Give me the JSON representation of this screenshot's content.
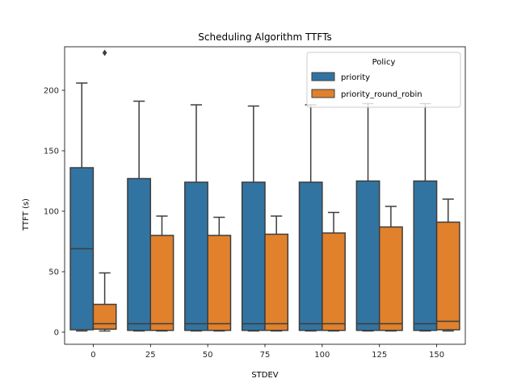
{
  "chart_data": {
    "type": "box",
    "title": "Scheduling Algorithm TTFTs",
    "xlabel": "STDEV",
    "ylabel": "TTFT (s)",
    "categories": [
      "0",
      "25",
      "50",
      "75",
      "100",
      "125",
      "150"
    ],
    "ylim": [
      -10,
      236
    ],
    "yticks": [
      0,
      50,
      100,
      150,
      200
    ],
    "grid": false,
    "legend": {
      "title": "Policy",
      "placement": "top-right"
    },
    "series": [
      {
        "name": "priority",
        "color": "#3274a1",
        "boxes": [
          {
            "whisker_low": 1,
            "q1": 2,
            "median": 69,
            "q3": 136,
            "whisker_high": 206,
            "outliers": []
          },
          {
            "whisker_low": 1,
            "q1": 1.5,
            "median": 7,
            "q3": 127,
            "whisker_high": 191,
            "outliers": []
          },
          {
            "whisker_low": 1,
            "q1": 1.5,
            "median": 7,
            "q3": 124,
            "whisker_high": 188,
            "outliers": []
          },
          {
            "whisker_low": 1,
            "q1": 1.5,
            "median": 7,
            "q3": 124,
            "whisker_high": 187,
            "outliers": []
          },
          {
            "whisker_low": 1,
            "q1": 1.5,
            "median": 7,
            "q3": 124,
            "whisker_high": 188,
            "outliers": []
          },
          {
            "whisker_low": 1,
            "q1": 1.5,
            "median": 7,
            "q3": 125,
            "whisker_high": 189,
            "outliers": []
          },
          {
            "whisker_low": 1,
            "q1": 1.5,
            "median": 7,
            "q3": 125,
            "whisker_high": 189,
            "outliers": []
          }
        ]
      },
      {
        "name": "priority_round_robin",
        "color": "#e1812c",
        "boxes": [
          {
            "whisker_low": 1,
            "q1": 2.5,
            "median": 7,
            "q3": 23,
            "whisker_high": 49,
            "outliers": [
              231
            ]
          },
          {
            "whisker_low": 1,
            "q1": 1.5,
            "median": 7,
            "q3": 80,
            "whisker_high": 96,
            "outliers": []
          },
          {
            "whisker_low": 1,
            "q1": 1.5,
            "median": 7,
            "q3": 80,
            "whisker_high": 95,
            "outliers": []
          },
          {
            "whisker_low": 1,
            "q1": 1.5,
            "median": 7,
            "q3": 81,
            "whisker_high": 96,
            "outliers": []
          },
          {
            "whisker_low": 1,
            "q1": 1.5,
            "median": 7,
            "q3": 82,
            "whisker_high": 99,
            "outliers": []
          },
          {
            "whisker_low": 1,
            "q1": 1.5,
            "median": 7,
            "q3": 87,
            "whisker_high": 104,
            "outliers": []
          },
          {
            "whisker_low": 1,
            "q1": 2,
            "median": 9,
            "q3": 91,
            "whisker_high": 110,
            "outliers": []
          }
        ]
      }
    ]
  }
}
